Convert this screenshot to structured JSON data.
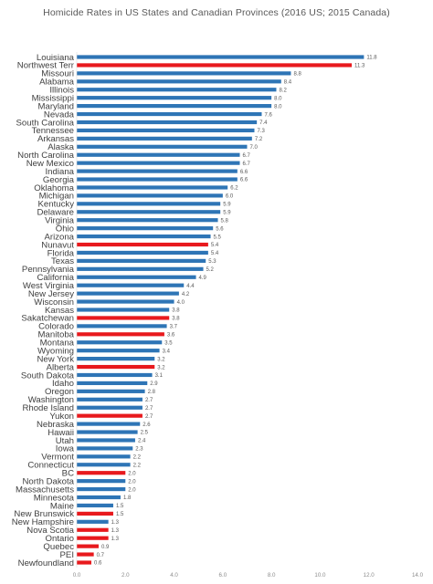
{
  "chart_data": {
    "type": "bar",
    "orientation": "horizontal",
    "title": "Homicide Rates in US States and Canadian Provinces (2016 US; 2015 Canada)",
    "xlabel": "",
    "ylabel": "",
    "xlim": [
      0,
      14
    ],
    "x_ticks": [
      "0.0",
      "2.0",
      "4.0",
      "6.0",
      "8.0",
      "10.0",
      "12.0",
      "14.0"
    ],
    "grid": false,
    "legend": "none",
    "colors": {
      "us": "#2e75b6",
      "canada": "#e8191d"
    },
    "bars": [
      {
        "label": "Louisiana",
        "value": 11.8,
        "value_label": "11.8",
        "group": "us"
      },
      {
        "label": "Northwest Terr",
        "value": 11.3,
        "value_label": "11.3",
        "group": "canada"
      },
      {
        "label": "Missouri",
        "value": 8.8,
        "value_label": "8.8",
        "group": "us"
      },
      {
        "label": "Alabama",
        "value": 8.4,
        "value_label": "8.4",
        "group": "us"
      },
      {
        "label": "Illinois",
        "value": 8.2,
        "value_label": "8.2",
        "group": "us"
      },
      {
        "label": "Mississippi",
        "value": 8.0,
        "value_label": "8.0",
        "group": "us"
      },
      {
        "label": "Maryland",
        "value": 8.0,
        "value_label": "8.0",
        "group": "us"
      },
      {
        "label": "Nevada",
        "value": 7.6,
        "value_label": "7.6",
        "group": "us"
      },
      {
        "label": "South Carolina",
        "value": 7.4,
        "value_label": "7.4",
        "group": "us"
      },
      {
        "label": "Tennessee",
        "value": 7.3,
        "value_label": "7.3",
        "group": "us"
      },
      {
        "label": "Arkansas",
        "value": 7.2,
        "value_label": "7.2",
        "group": "us"
      },
      {
        "label": "Alaska",
        "value": 7.0,
        "value_label": "7.0",
        "group": "us"
      },
      {
        "label": "North Carolina",
        "value": 6.7,
        "value_label": "6.7",
        "group": "us"
      },
      {
        "label": "New Mexico",
        "value": 6.7,
        "value_label": "6.7",
        "group": "us"
      },
      {
        "label": "Indiana",
        "value": 6.6,
        "value_label": "6.6",
        "group": "us"
      },
      {
        "label": "Georgia",
        "value": 6.6,
        "value_label": "6.6",
        "group": "us"
      },
      {
        "label": "Oklahoma",
        "value": 6.2,
        "value_label": "6.2",
        "group": "us"
      },
      {
        "label": "Michigan",
        "value": 6.0,
        "value_label": "6.0",
        "group": "us"
      },
      {
        "label": "Kentucky",
        "value": 5.9,
        "value_label": "5.9",
        "group": "us"
      },
      {
        "label": "Delaware",
        "value": 5.9,
        "value_label": "5.9",
        "group": "us"
      },
      {
        "label": "Virginia",
        "value": 5.8,
        "value_label": "5.8",
        "group": "us"
      },
      {
        "label": "Ohio",
        "value": 5.6,
        "value_label": "5.6",
        "group": "us"
      },
      {
        "label": "Arizona",
        "value": 5.5,
        "value_label": "5.5",
        "group": "us"
      },
      {
        "label": "Nunavut",
        "value": 5.4,
        "value_label": "5.4",
        "group": "canada"
      },
      {
        "label": "Florida",
        "value": 5.4,
        "value_label": "5.4",
        "group": "us"
      },
      {
        "label": "Texas",
        "value": 5.3,
        "value_label": "5.3",
        "group": "us"
      },
      {
        "label": "Pennsylvania",
        "value": 5.2,
        "value_label": "5.2",
        "group": "us"
      },
      {
        "label": "California",
        "value": 4.9,
        "value_label": "4.9",
        "group": "us"
      },
      {
        "label": "West Virginia",
        "value": 4.4,
        "value_label": "4.4",
        "group": "us"
      },
      {
        "label": "New Jersey",
        "value": 4.2,
        "value_label": "4.2",
        "group": "us"
      },
      {
        "label": "Wisconsin",
        "value": 4.0,
        "value_label": "4.0",
        "group": "us"
      },
      {
        "label": "Kansas",
        "value": 3.8,
        "value_label": "3.8",
        "group": "us"
      },
      {
        "label": "Sakatchewan",
        "value": 3.8,
        "value_label": "3.8",
        "group": "canada"
      },
      {
        "label": "Colorado",
        "value": 3.7,
        "value_label": "3.7",
        "group": "us"
      },
      {
        "label": "Manitoba",
        "value": 3.6,
        "value_label": "3.6",
        "group": "canada"
      },
      {
        "label": "Montana",
        "value": 3.5,
        "value_label": "3.5",
        "group": "us"
      },
      {
        "label": "Wyoming",
        "value": 3.4,
        "value_label": "3.4",
        "group": "us"
      },
      {
        "label": "New York",
        "value": 3.2,
        "value_label": "3.2",
        "group": "us"
      },
      {
        "label": "Alberta",
        "value": 3.2,
        "value_label": "3.2",
        "group": "canada"
      },
      {
        "label": "South Dakota",
        "value": 3.1,
        "value_label": "3.1",
        "group": "us"
      },
      {
        "label": "Idaho",
        "value": 2.9,
        "value_label": "2.9",
        "group": "us"
      },
      {
        "label": "Oregon",
        "value": 2.8,
        "value_label": "2.8",
        "group": "us"
      },
      {
        "label": "Washington",
        "value": 2.7,
        "value_label": "2.7",
        "group": "us"
      },
      {
        "label": "Rhode Island",
        "value": 2.7,
        "value_label": "2.7",
        "group": "us"
      },
      {
        "label": "Yukon",
        "value": 2.7,
        "value_label": "2.7",
        "group": "canada"
      },
      {
        "label": "Nebraska",
        "value": 2.6,
        "value_label": "2.6",
        "group": "us"
      },
      {
        "label": "Hawaii",
        "value": 2.5,
        "value_label": "2.5",
        "group": "us"
      },
      {
        "label": "Utah",
        "value": 2.4,
        "value_label": "2.4",
        "group": "us"
      },
      {
        "label": "Iowa",
        "value": 2.3,
        "value_label": "2.3",
        "group": "us"
      },
      {
        "label": "Vermont",
        "value": 2.2,
        "value_label": "2.2",
        "group": "us"
      },
      {
        "label": "Connecticut",
        "value": 2.2,
        "value_label": "2.2",
        "group": "us"
      },
      {
        "label": "BC",
        "value": 2.0,
        "value_label": "2.0",
        "group": "canada"
      },
      {
        "label": "North Dakota",
        "value": 2.0,
        "value_label": "2.0",
        "group": "us"
      },
      {
        "label": "Massachusetts",
        "value": 2.0,
        "value_label": "2.0",
        "group": "us"
      },
      {
        "label": "Minnesota",
        "value": 1.8,
        "value_label": "1.8",
        "group": "us"
      },
      {
        "label": "Maine",
        "value": 1.5,
        "value_label": "1.5",
        "group": "us"
      },
      {
        "label": "New Brunswick",
        "value": 1.5,
        "value_label": "1.5",
        "group": "canada"
      },
      {
        "label": "New Hampshire",
        "value": 1.3,
        "value_label": "1.3",
        "group": "us"
      },
      {
        "label": "Nova Scotia",
        "value": 1.3,
        "value_label": "1.3",
        "group": "canada"
      },
      {
        "label": "Ontario",
        "value": 1.3,
        "value_label": "1.3",
        "group": "canada"
      },
      {
        "label": "Quebec",
        "value": 0.9,
        "value_label": "0.9",
        "group": "canada"
      },
      {
        "label": "PEI",
        "value": 0.7,
        "value_label": "0.7",
        "group": "canada"
      },
      {
        "label": "Newfoundland",
        "value": 0.6,
        "value_label": "0.6",
        "group": "canada"
      }
    ]
  }
}
